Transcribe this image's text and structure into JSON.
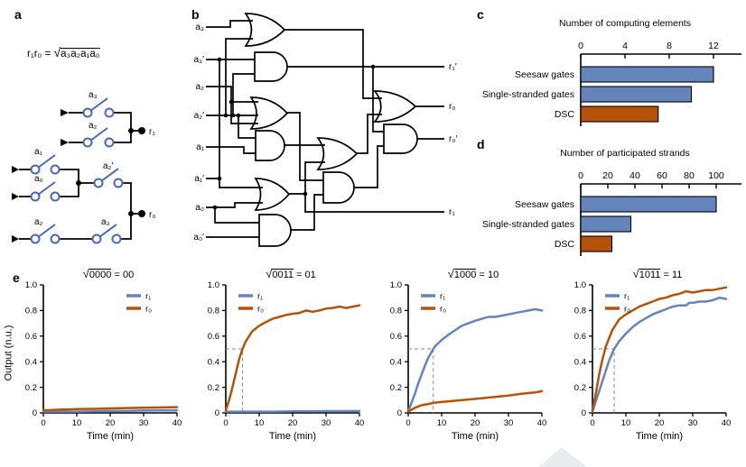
{
  "colors": {
    "blue": "#6584bc",
    "orange": "#b5520a",
    "switch_blue": "#4868b8",
    "dash_grey": "#8a8a8a",
    "watermark": "#e9ecef"
  },
  "panel_labels": {
    "a": "a",
    "b": "b",
    "c": "c",
    "d": "d",
    "e": "e"
  },
  "panels": {
    "a": {
      "formula": {
        "lhs": "r₁r₀ =",
        "sqrt": "√",
        "radicand": "a₃a₂a₁a₀"
      },
      "switch_labels": {
        "s1": "a₃",
        "s2": "a₂",
        "s3": "a₁",
        "s4": "a₀",
        "s5": "a₂′",
        "s6": "a₂",
        "s7": "a₃"
      },
      "outputs": {
        "r1": "r₁",
        "r0": "r₀"
      }
    },
    "b": {
      "inputs": [
        "a₃",
        "a₃′",
        "a₂",
        "a₂′",
        "a₁",
        "a₁′",
        "a₀",
        "a₀′"
      ],
      "outputs": [
        "r₁′",
        "r₀",
        "r₀′",
        "r₁"
      ]
    }
  },
  "chart_data": [
    {
      "id": "c",
      "type": "bar",
      "orientation": "horizontal",
      "title": "Number of computing elements",
      "categories": [
        "Seesaw gates",
        "Single-stranded gates",
        "DSC"
      ],
      "values": [
        12,
        10,
        7
      ],
      "bar_colors": [
        "#6584bc",
        "#6584bc",
        "#b5520a"
      ],
      "xticks": [
        0,
        4,
        8,
        12
      ],
      "xlim": [
        0,
        14.5
      ],
      "grid": false
    },
    {
      "id": "d",
      "type": "bar",
      "orientation": "horizontal",
      "title": "Number of participated strands",
      "categories": [
        "Seesaw gates",
        "Single-stranded gates",
        "DSC"
      ],
      "values": [
        100,
        37,
        23
      ],
      "bar_colors": [
        "#6584bc",
        "#6584bc",
        "#b5520a"
      ],
      "xticks": [
        0,
        20,
        40,
        60,
        80,
        100
      ],
      "xlim": [
        0,
        119
      ],
      "grid": false
    },
    {
      "id": "e1",
      "type": "line",
      "title": {
        "sqrt": "√",
        "radicand": "0000",
        "eq": " = ",
        "result": "00"
      },
      "xlabel": "Time (min)",
      "ylabel": "Output (n.u.)",
      "xlim": [
        0,
        40
      ],
      "ylim": [
        0,
        1
      ],
      "xticks": [
        0,
        10,
        20,
        30,
        40
      ],
      "yticks": [
        0,
        0.2,
        0.4,
        0.6,
        0.8,
        1.0
      ],
      "ytick_labels": [
        "0",
        "0.2",
        "0.4",
        "0.6",
        "0.8",
        "1.0"
      ],
      "legend_pos": "top-right",
      "crosshair": null,
      "grid": false,
      "series": [
        {
          "name": "r₁",
          "color": "#6584bc",
          "x": [
            0,
            5,
            10,
            15,
            20,
            25,
            30,
            35,
            40
          ],
          "y": [
            0.01,
            0.01,
            0.01,
            0.012,
            0.015,
            0.015,
            0.018,
            0.02,
            0.02
          ]
        },
        {
          "name": "r₀",
          "color": "#b5520a",
          "x": [
            0,
            5,
            10,
            15,
            20,
            25,
            30,
            35,
            40
          ],
          "y": [
            0.02,
            0.025,
            0.03,
            0.032,
            0.035,
            0.038,
            0.04,
            0.042,
            0.045
          ]
        }
      ]
    },
    {
      "id": "e2",
      "type": "line",
      "title": {
        "sqrt": "√",
        "radicand": "0011",
        "eq": " = ",
        "result": "01"
      },
      "xlabel": "Time (min)",
      "xlim": [
        0,
        40
      ],
      "ylim": [
        0,
        1
      ],
      "xticks": [
        0,
        10,
        20,
        30,
        40
      ],
      "yticks": [
        0,
        0.2,
        0.4,
        0.6,
        0.8,
        1.0
      ],
      "ytick_labels": [
        "0",
        "0.2",
        "0.4",
        "0.6",
        "0.8",
        "1.0"
      ],
      "legend_pos": "top-left",
      "crosshair": {
        "x": 5,
        "y": 0.5
      },
      "grid": false,
      "series": [
        {
          "name": "r₁",
          "color": "#6584bc",
          "x": [
            0,
            5,
            10,
            15,
            20,
            25,
            30,
            35,
            40
          ],
          "y": [
            0.01,
            0.01,
            0.01,
            0.01,
            0.012,
            0.012,
            0.014,
            0.014,
            0.015
          ]
        },
        {
          "name": "r₀",
          "color": "#b5520a",
          "x": [
            0,
            1,
            2,
            3,
            4,
            5,
            6,
            8,
            10,
            12,
            14,
            16,
            18,
            20,
            22,
            24,
            26,
            28,
            30,
            32,
            34,
            36,
            38,
            40
          ],
          "y": [
            0.02,
            0.1,
            0.2,
            0.31,
            0.42,
            0.5,
            0.56,
            0.64,
            0.68,
            0.71,
            0.735,
            0.75,
            0.765,
            0.775,
            0.78,
            0.8,
            0.79,
            0.8,
            0.815,
            0.82,
            0.83,
            0.82,
            0.83,
            0.84
          ]
        }
      ]
    },
    {
      "id": "e3",
      "type": "line",
      "title": {
        "sqrt": "√",
        "radicand": "1000",
        "eq": " = ",
        "result": "10"
      },
      "xlabel": "Time (min)",
      "xlim": [
        0,
        40
      ],
      "ylim": [
        0,
        1
      ],
      "xticks": [
        0,
        10,
        20,
        30,
        40
      ],
      "yticks": [
        0,
        0.2,
        0.4,
        0.6,
        0.8,
        1.0
      ],
      "ytick_labels": [
        "0",
        "0.2",
        "0.4",
        "0.6",
        "0.8",
        "1.0"
      ],
      "legend_pos": "top-left",
      "crosshair": {
        "x": 7.5,
        "y": 0.5
      },
      "grid": false,
      "series": [
        {
          "name": "r₁",
          "color": "#6584bc",
          "x": [
            0,
            1,
            2,
            3,
            4,
            5,
            6,
            7.5,
            8,
            10,
            12,
            14,
            16,
            18,
            20,
            22,
            24,
            26,
            28,
            30,
            32,
            34,
            36,
            38,
            40
          ],
          "y": [
            0.01,
            0.08,
            0.15,
            0.23,
            0.3,
            0.37,
            0.43,
            0.5,
            0.52,
            0.57,
            0.61,
            0.645,
            0.68,
            0.7,
            0.72,
            0.735,
            0.75,
            0.75,
            0.76,
            0.77,
            0.78,
            0.79,
            0.8,
            0.81,
            0.8
          ]
        },
        {
          "name": "r₀",
          "color": "#b5520a",
          "x": [
            0,
            2,
            4,
            6,
            8,
            10,
            14,
            18,
            22,
            26,
            30,
            34,
            38,
            40
          ],
          "y": [
            0.01,
            0.04,
            0.06,
            0.07,
            0.08,
            0.085,
            0.095,
            0.105,
            0.115,
            0.125,
            0.135,
            0.15,
            0.16,
            0.17
          ]
        }
      ]
    },
    {
      "id": "e4",
      "type": "line",
      "title": {
        "sqrt": "√",
        "radicand": "1011",
        "eq": " = ",
        "result": "11"
      },
      "xlabel": "Time (min)",
      "xlim": [
        0,
        40
      ],
      "ylim": [
        0,
        1
      ],
      "xticks": [
        0,
        10,
        20,
        30,
        40
      ],
      "yticks": [
        0,
        0.2,
        0.4,
        0.6,
        0.8,
        1.0
      ],
      "ytick_labels": [
        "0",
        "0.2",
        "0.4",
        "0.6",
        "0.8",
        "1.0"
      ],
      "legend_pos": "top-left",
      "crosshair": {
        "x": 6.5,
        "y": 0.5
      },
      "grid": false,
      "series": [
        {
          "name": "r₁",
          "color": "#6584bc",
          "x": [
            0,
            1,
            2,
            3,
            4,
            5,
            6.5,
            8,
            10,
            12,
            14,
            16,
            18,
            20,
            22,
            24,
            26,
            28,
            29,
            30,
            32,
            34,
            36,
            38,
            40
          ],
          "y": [
            0.01,
            0.09,
            0.17,
            0.25,
            0.33,
            0.41,
            0.5,
            0.56,
            0.62,
            0.67,
            0.71,
            0.74,
            0.77,
            0.79,
            0.81,
            0.83,
            0.84,
            0.84,
            0.86,
            0.86,
            0.87,
            0.87,
            0.88,
            0.9,
            0.89
          ]
        },
        {
          "name": "r₀",
          "color": "#b5520a",
          "x": [
            0,
            1,
            2,
            3,
            4,
            6,
            8,
            10,
            12,
            14,
            16,
            18,
            20,
            22,
            24,
            26,
            28,
            30,
            32,
            34,
            36,
            38,
            40
          ],
          "y": [
            0.02,
            0.15,
            0.3,
            0.42,
            0.52,
            0.65,
            0.73,
            0.77,
            0.8,
            0.83,
            0.85,
            0.87,
            0.89,
            0.9,
            0.92,
            0.93,
            0.95,
            0.94,
            0.95,
            0.96,
            0.96,
            0.97,
            0.98
          ]
        }
      ]
    }
  ]
}
